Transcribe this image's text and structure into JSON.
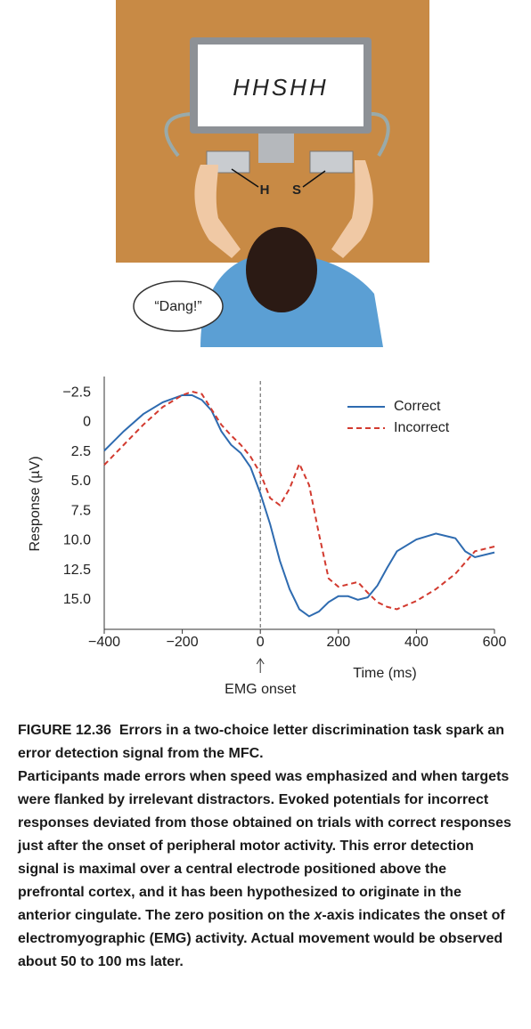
{
  "illustration": {
    "screen_text": "HHSHH",
    "key_left": "H",
    "key_right": "S",
    "speech": "“Dang!”"
  },
  "chart_data": {
    "type": "line",
    "y_label": "Response (µV)",
    "x_label": "Time (ms)",
    "annotation": "EMG onset",
    "xlim": [
      -400,
      600
    ],
    "xticks": [
      {
        "value": -400,
        "label": "−400"
      },
      {
        "value": -200,
        "label": "−200"
      },
      0,
      200,
      400,
      600
    ],
    "ylim": [
      -3.5,
      17.5
    ],
    "y_inverted": true,
    "yticks": [
      {
        "value": -2.5,
        "label": "−2.5"
      },
      0,
      2.5,
      {
        "value": 5,
        "label": "5.0"
      },
      7.5,
      {
        "value": 10,
        "label": "10.0"
      },
      12.5,
      {
        "value": 15,
        "label": "15.0"
      }
    ],
    "vline": 0,
    "legend": "upper right",
    "series": [
      {
        "name": "Correct",
        "color": "#2e6bb0",
        "dash": false,
        "x": [
          -400,
          -350,
          -300,
          -250,
          -200,
          -175,
          -150,
          -125,
          -100,
          -75,
          -50,
          -25,
          0,
          25,
          50,
          75,
          100,
          125,
          150,
          175,
          200,
          225,
          250,
          275,
          300,
          325,
          350,
          400,
          450,
          500,
          525,
          550,
          600
        ],
        "values": [
          2.4,
          0.75,
          -0.7,
          -1.7,
          -2.3,
          -2.3,
          -1.9,
          -1.0,
          0.75,
          1.9,
          2.6,
          3.8,
          6.0,
          8.6,
          11.7,
          14.1,
          15.8,
          16.4,
          16.0,
          15.2,
          14.7,
          14.7,
          15.0,
          14.8,
          13.8,
          12.3,
          10.9,
          9.9,
          9.4,
          9.8,
          10.9,
          11.4,
          11.0
        ]
      },
      {
        "name": "Incorrect",
        "color": "#d23a2f",
        "dash": true,
        "x": [
          -400,
          -350,
          -300,
          -250,
          -200,
          -175,
          -150,
          -125,
          -100,
          -75,
          -50,
          -25,
          0,
          25,
          50,
          75,
          100,
          125,
          150,
          175,
          200,
          250,
          275,
          300,
          325,
          350,
          400,
          450,
          500,
          550,
          600
        ],
        "values": [
          3.6,
          1.9,
          0.2,
          -1.3,
          -2.3,
          -2.6,
          -2.4,
          -1.1,
          0.2,
          1.1,
          1.9,
          2.9,
          4.3,
          6.4,
          7.0,
          5.6,
          3.5,
          5.3,
          9.4,
          13.2,
          13.9,
          13.5,
          14.4,
          15.2,
          15.6,
          15.8,
          15.1,
          14.1,
          12.8,
          10.9,
          10.5
        ]
      }
    ]
  },
  "caption": {
    "label": "FIGURE 12.36",
    "title": "Errors in a two-choice letter discrimination task spark an error detection signal from the MFC.",
    "body": [
      "Participants made errors when speed was emphasized and when targets were flanked by irrelevant distractors. Evoked potentials for incorrect responses deviated from those obtained on trials with correct responses just after the onset of peripheral motor activity. This error detection signal is maximal over a central electrode positioned above the prefrontal cortex, and it has been hypothesized to originate in the anterior cingulate. The zero position on the ",
      "x",
      "-axis indicates the onset of electromyographic (EMG) activity. Actual movement would be observed about 50 to 100 ms later."
    ]
  }
}
